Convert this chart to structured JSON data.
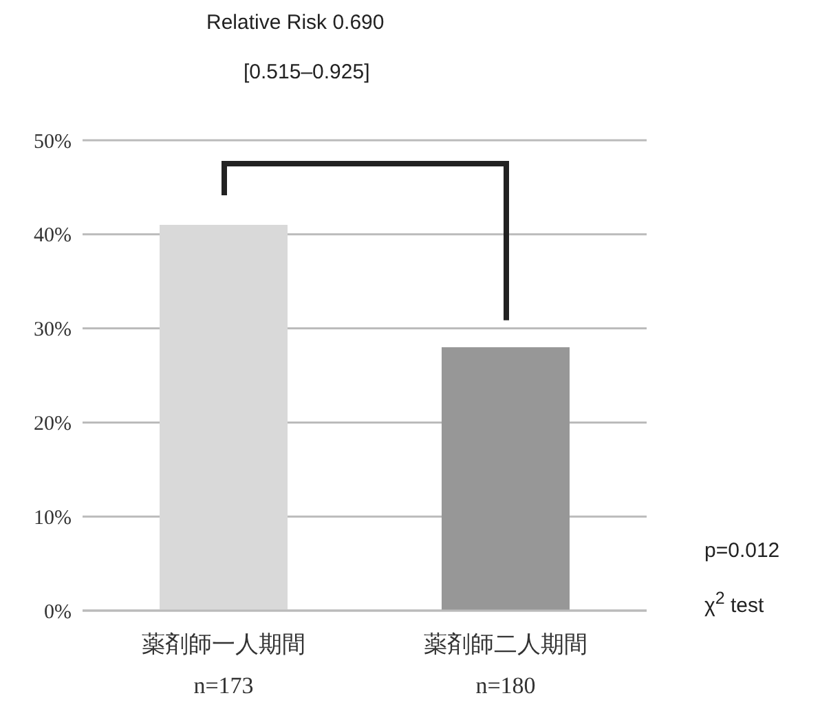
{
  "chart_data": {
    "type": "bar",
    "categories": [
      "薬剤師一人期間\nn=173",
      "薬剤師二人期間\nn=180"
    ],
    "values": [
      41,
      28
    ],
    "colors": [
      "#d9d9d9",
      "#979797"
    ],
    "ylim": [
      0,
      50
    ],
    "yticks": [
      {
        "value": 0,
        "label": "0%"
      },
      {
        "value": 10,
        "label": "10%"
      },
      {
        "value": 20,
        "label": "20%"
      },
      {
        "value": 30,
        "label": "30%"
      },
      {
        "value": 40,
        "label": "40%"
      },
      {
        "value": 50,
        "label": "50%"
      }
    ],
    "grid": "y",
    "legend": false,
    "annotations": [
      "Relative Risk 0.690",
      "[0.515–0.925]",
      "p=0.012",
      "χ$^{2}$ test"
    ]
  }
}
